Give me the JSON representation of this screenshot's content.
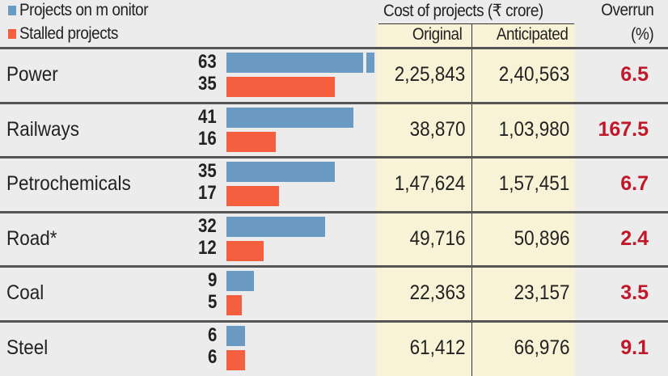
{
  "legend": {
    "monitor": "Projects on m onitor",
    "stalled": "Stalled projects"
  },
  "colors": {
    "monitor": "#6b9bc3",
    "stalled": "#f4603f",
    "overrun": "#c0182a"
  },
  "header": {
    "cost": "Cost of projects (₹ crore)",
    "original": "Original",
    "anticipated": "Anticipated",
    "overrun_line1": "Overrun",
    "overrun_line2": "(%)"
  },
  "chart_data": {
    "type": "table",
    "series": [
      {
        "name": "Projects on m onitor"
      },
      {
        "name": "Stalled projects"
      }
    ],
    "rows": [
      {
        "sector": "Power",
        "monitor": 63,
        "stalled": 35,
        "original": "2,25,843",
        "anticipated": "2,40,563",
        "overrun": "6.5"
      },
      {
        "sector": "Railways",
        "monitor": 41,
        "stalled": 16,
        "original": "38,870",
        "anticipated": "1,03,980",
        "overrun": "167.5"
      },
      {
        "sector": "Petrochemicals",
        "monitor": 35,
        "stalled": 17,
        "original": "1,47,624",
        "anticipated": "1,57,451",
        "overrun": "6.7"
      },
      {
        "sector": "Road*",
        "monitor": 32,
        "stalled": 12,
        "original": "49,716",
        "anticipated": "50,896",
        "overrun": "2.4"
      },
      {
        "sector": "Coal",
        "monitor": 9,
        "stalled": 5,
        "original": "22,363",
        "anticipated": "23,157",
        "overrun": "3.5"
      },
      {
        "sector": "Steel",
        "monitor": 6,
        "stalled": 6,
        "original": "61,412",
        "anticipated": "66,976",
        "overrun": "9.1"
      }
    ]
  }
}
